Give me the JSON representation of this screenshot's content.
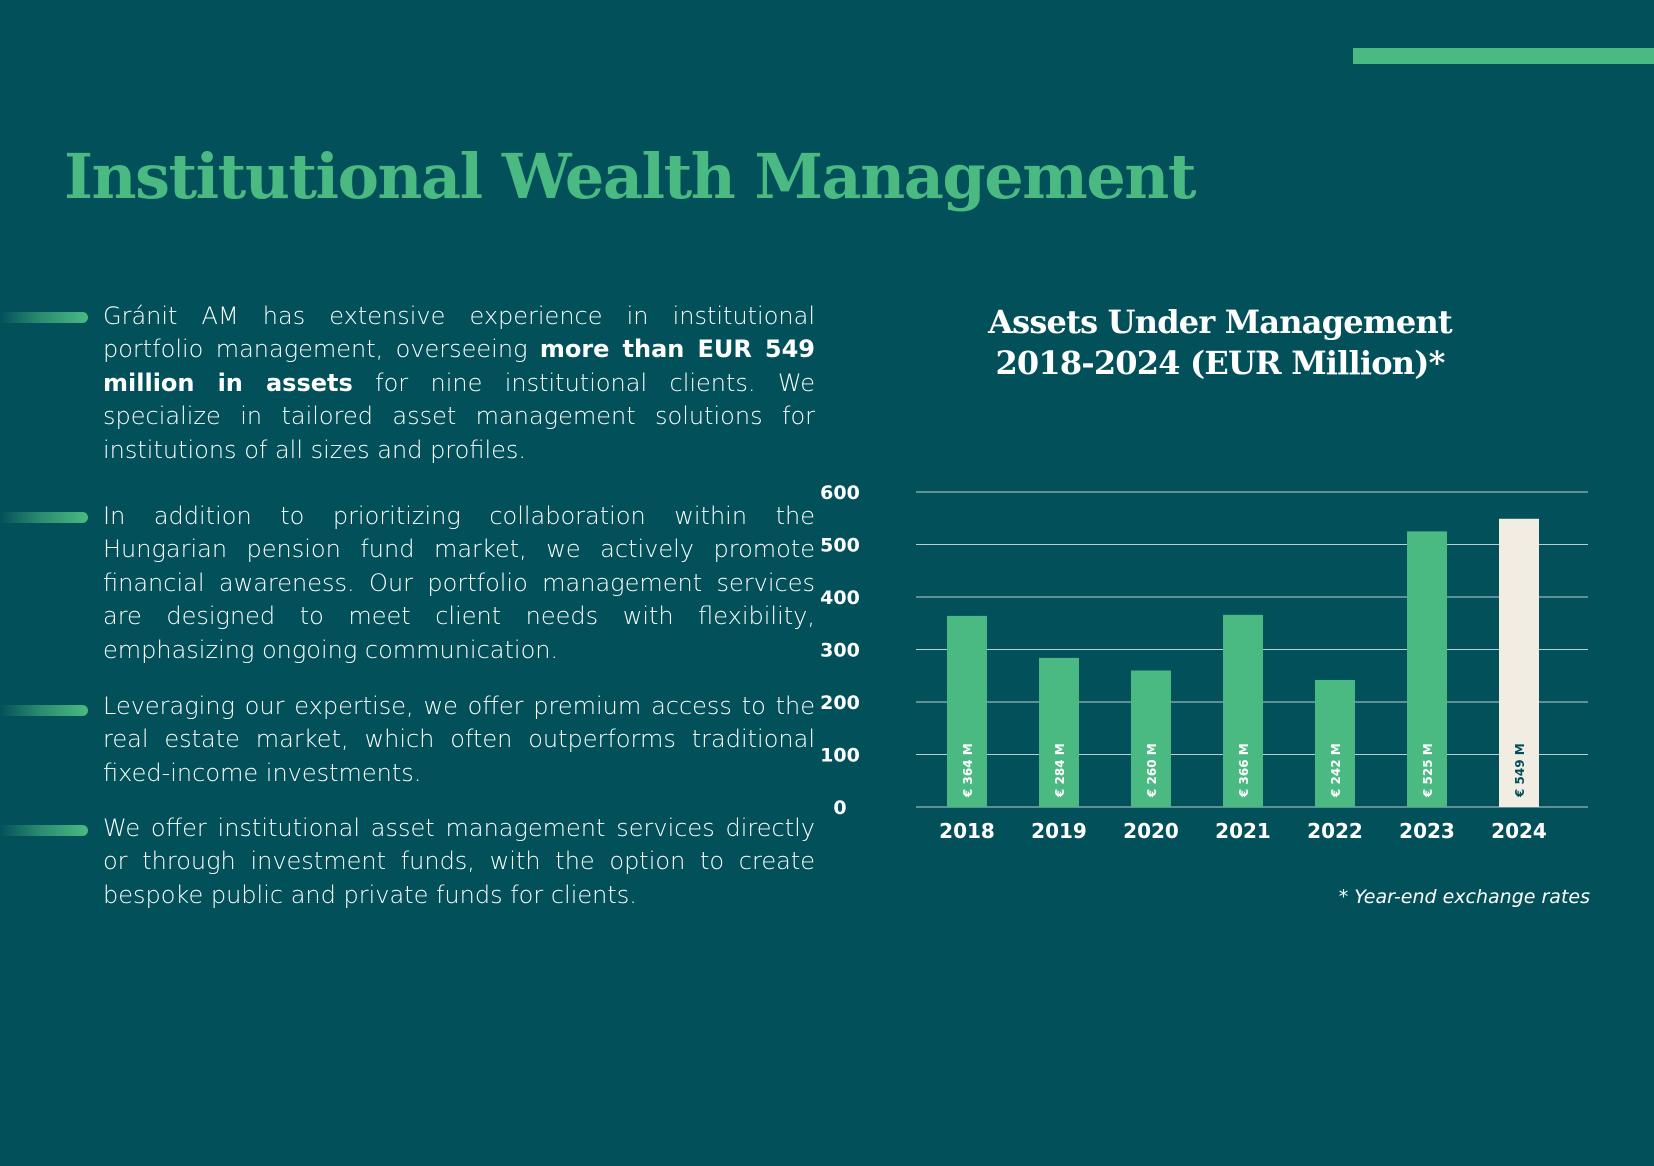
{
  "page": {
    "title": "Institutional Wealth Management",
    "accent_color": "#4aba82",
    "background_color": "#02515a",
    "highlight_color": "#f1ede3"
  },
  "paragraphs": [
    {
      "segments": [
        {
          "text": "Gránit AM has extensive experience in institutional portfolio management, overseeing ",
          "bold": false
        },
        {
          "text": "more than EUR 549 million in assets",
          "bold": true
        },
        {
          "text": " for nine institutional clients. We specialize in tailored asset management solutions for institutions of all sizes and profiles.",
          "bold": false
        }
      ]
    },
    {
      "segments": [
        {
          "text": "In addition to prioritizing collaboration within the Hungarian pension fund market, we actively promote financial awareness. Our portfolio management services are designed to meet client needs with flexibility, emphasizing ongoing communication.",
          "bold": false
        }
      ]
    },
    {
      "segments": [
        {
          "text": "Leveraging our expertise, we offer premium access to the real estate market, which often outperforms traditional fixed-income investments.",
          "bold": false
        }
      ]
    },
    {
      "segments": [
        {
          "text": "We offer institutional asset management services directly or through investment funds, with the option to create bespoke public and private funds for clients.",
          "bold": false
        }
      ]
    }
  ],
  "chart_data": {
    "type": "bar",
    "title": "Assets Under Management",
    "subtitle": "2018-2024 (EUR Million)*",
    "categories": [
      "2018",
      "2019",
      "2020",
      "2021",
      "2022",
      "2023",
      "2024"
    ],
    "values": [
      364,
      284,
      260,
      366,
      242,
      525,
      549
    ],
    "data_labels": [
      "€ 364 M",
      "€ 284 M",
      "€ 260 M",
      "€ 366 M",
      "€ 242 M",
      "€ 525 M",
      "€ 549 M"
    ],
    "ylim": [
      0,
      600
    ],
    "yticks": [
      0,
      100,
      200,
      300,
      400,
      500,
      600
    ],
    "xlabel": "",
    "ylabel": "",
    "grid": true,
    "legend": "none",
    "colors": {
      "bar": "#4aba82",
      "highlight_bar": "#f1ede3",
      "highlight_category": "2024",
      "label_on_bar": "#ffffff",
      "label_on_highlight": "#02515a",
      "grid": "#b8cdd0",
      "axis_text": "#ffffff"
    },
    "footnote": "* Year-end exchange rates"
  }
}
